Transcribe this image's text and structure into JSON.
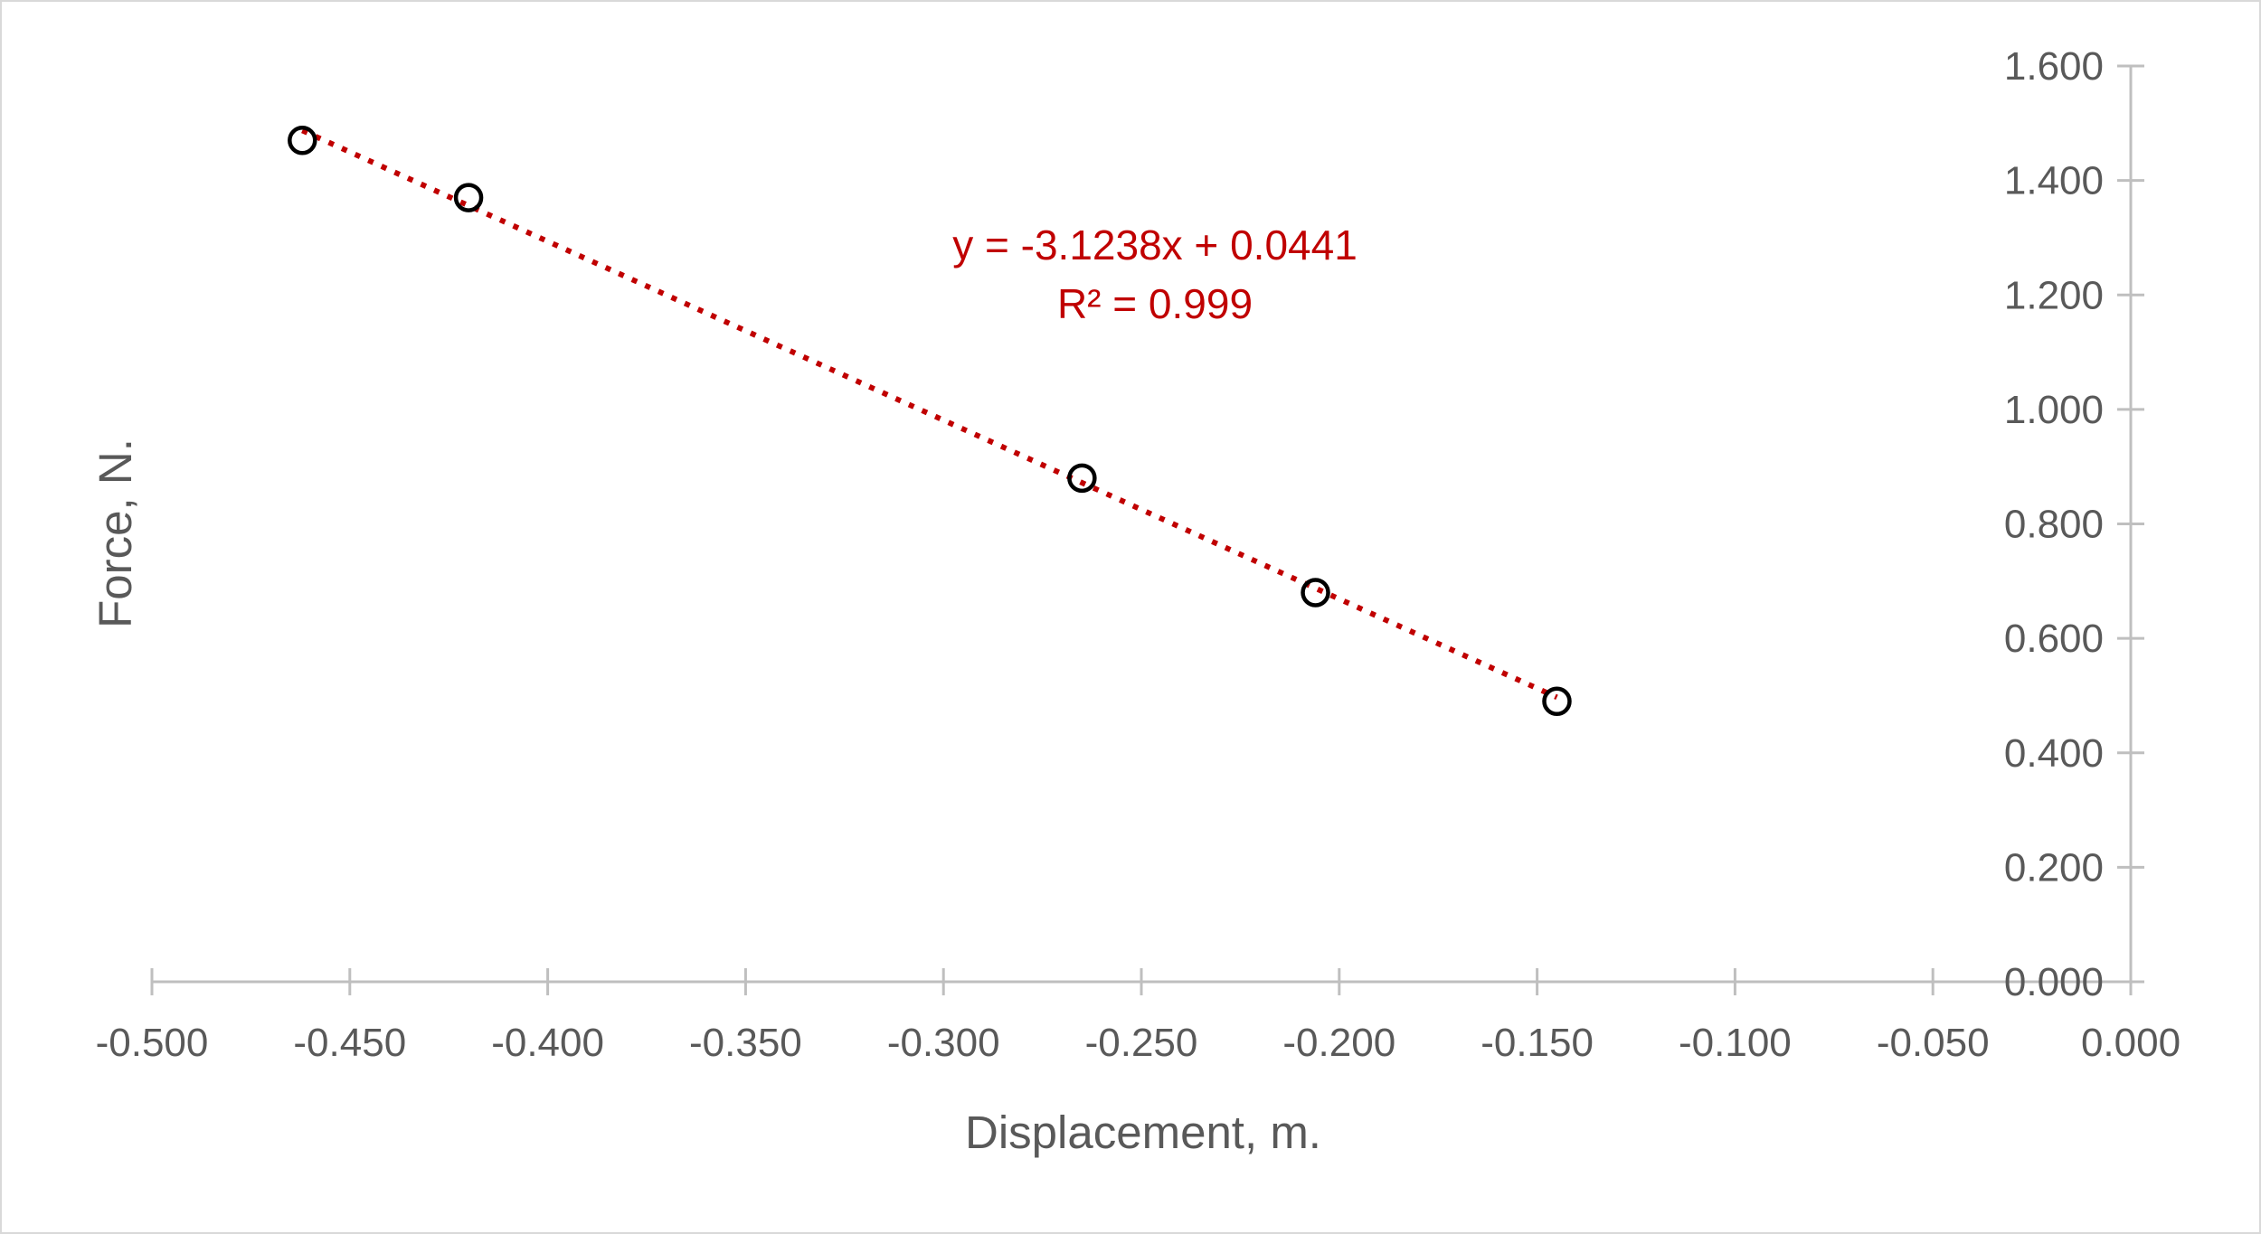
{
  "chart_data": {
    "type": "scatter",
    "title": "",
    "xlabel": "Displacement, m.",
    "ylabel": "Force, N.",
    "xlim": [
      -0.5,
      0.0
    ],
    "ylim": [
      0.0,
      1.6
    ],
    "x_ticks": [
      "-0.500",
      "-0.450",
      "-0.400",
      "-0.350",
      "-0.300",
      "-0.250",
      "-0.200",
      "-0.150",
      "-0.100",
      "-0.050",
      "0.000"
    ],
    "y_ticks": [
      "0.000",
      "0.200",
      "0.400",
      "0.600",
      "0.800",
      "1.000",
      "1.200",
      "1.400",
      "1.600"
    ],
    "y_axis_position": "right",
    "grid": false,
    "legend": "none",
    "series": [
      {
        "x": [
          -0.462,
          -0.42,
          -0.265,
          -0.206,
          -0.145
        ],
        "y": [
          1.47,
          1.37,
          0.88,
          0.68,
          0.49
        ]
      }
    ],
    "trendline": {
      "type": "linear",
      "slope": -3.1238,
      "intercept": 0.0441,
      "x_range": [
        -0.462,
        -0.145
      ],
      "equation": "y = -3.1238x + 0.0441",
      "r_squared": "R² = 0.999",
      "color": "#c00000"
    },
    "colors": {
      "axis": "#bfbfbf",
      "marker": "#000000",
      "text": "#595959",
      "frame": "#d9d9d9"
    }
  }
}
